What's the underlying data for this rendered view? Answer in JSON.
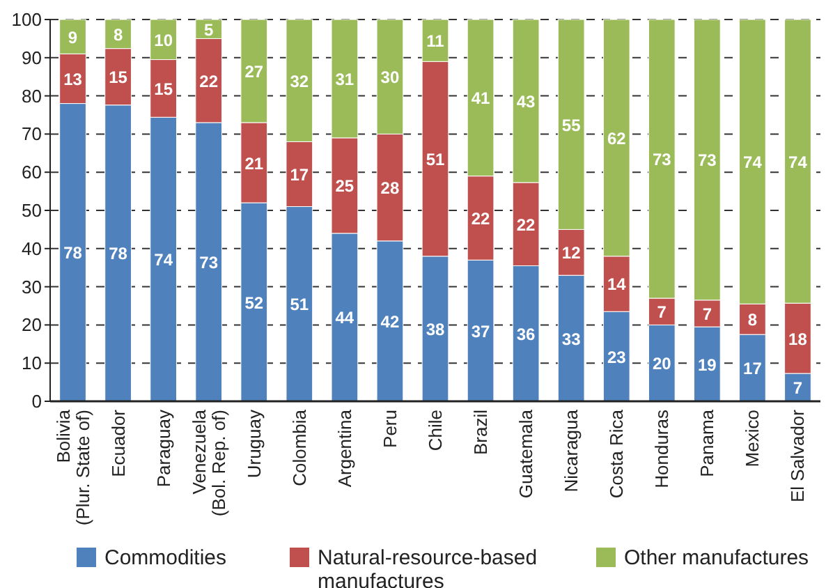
{
  "chart_data": {
    "type": "bar",
    "stacked": true,
    "categories": [
      "Bolivia\n(Plur. State of)",
      "Ecuador",
      "Paraguay",
      "Venezuela\n(Bol. Rep. of)",
      "Uruguay",
      "Colombia",
      "Argentina",
      "Peru",
      "Chile",
      "Brazil",
      "Guatemala",
      "Nicaragua",
      "Costa Rica",
      "Honduras",
      "Panama",
      "Mexico",
      "El Salvador"
    ],
    "series": [
      {
        "name": "Commodities",
        "color": "#4f81bd",
        "values": [
          78,
          77.6,
          74.4,
          73,
          52,
          51,
          44,
          42,
          38,
          37,
          35.5,
          33,
          23.5,
          20,
          19.5,
          17.5,
          7.3
        ],
        "value_labels": [
          "78",
          "78",
          "74",
          "73",
          "52",
          "51",
          "44",
          "42",
          "38",
          "37",
          "36",
          "33",
          "23",
          "20",
          "19",
          "17",
          "7"
        ]
      },
      {
        "name": "Natural-resource-based manufactures",
        "color": "#c0504d",
        "values": [
          13,
          14.8,
          15.1,
          22,
          21,
          17,
          25,
          28,
          51,
          22,
          21.8,
          12,
          14.5,
          7,
          7,
          8,
          18.4
        ],
        "value_labels": [
          "13",
          "15",
          "15",
          "22",
          "21",
          "17",
          "25",
          "28",
          "51",
          "22",
          "22",
          "12",
          "14",
          "7",
          "7",
          "8",
          "18"
        ]
      },
      {
        "name": "Other manufactures",
        "color": "#9bbb59",
        "values": [
          9,
          7.6,
          10.5,
          5,
          27,
          32,
          31,
          30,
          11,
          41,
          42.7,
          55,
          62,
          73,
          73.5,
          74.5,
          74.3
        ],
        "value_labels": [
          "9",
          "8",
          "10",
          "5",
          "27",
          "32",
          "31",
          "30",
          "11",
          "41",
          "43",
          "55",
          "62",
          "73",
          "73",
          "74",
          "74"
        ]
      }
    ],
    "ylim": [
      0,
      100
    ],
    "yticks": [
      0,
      10,
      20,
      30,
      40,
      50,
      60,
      70,
      80,
      90,
      100
    ],
    "grid": "y",
    "legend": "bottom"
  }
}
